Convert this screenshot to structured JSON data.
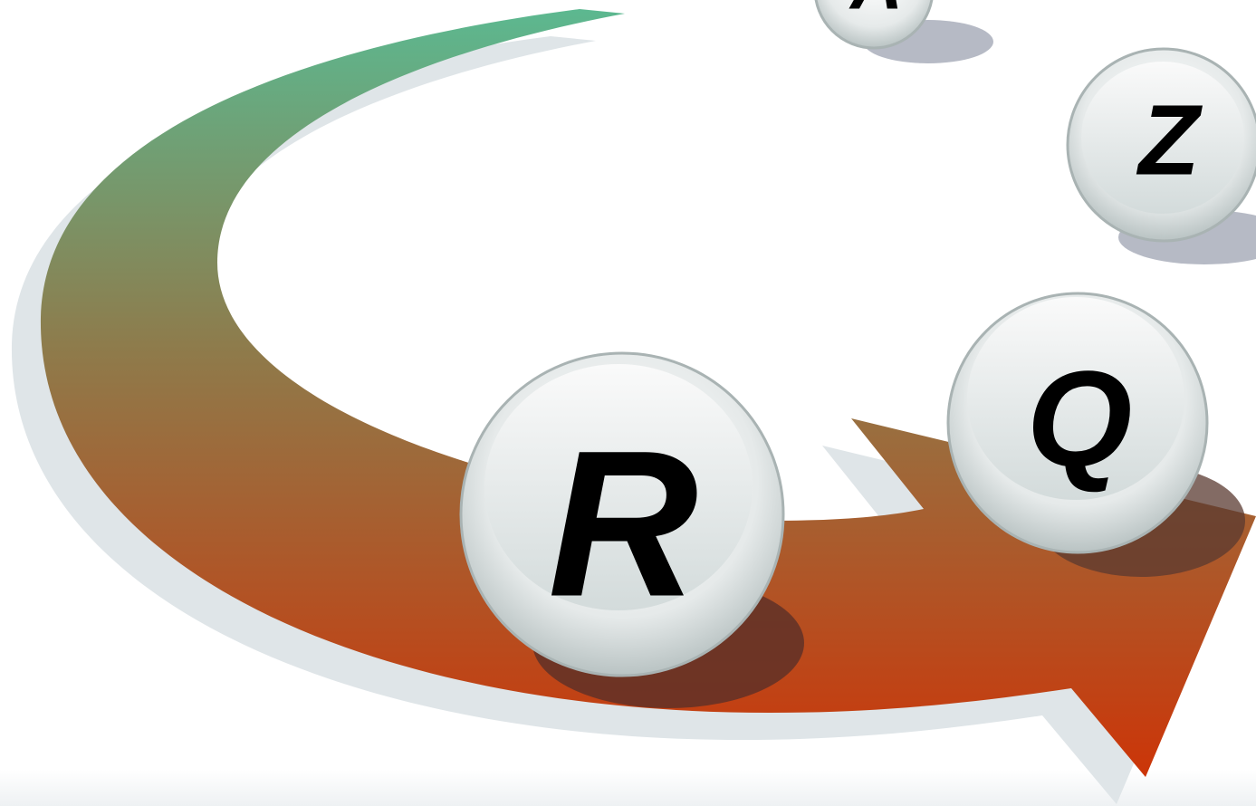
{
  "balls": [
    {
      "label": "R"
    },
    {
      "label": "Q"
    },
    {
      "label": "Z"
    },
    {
      "label": "A"
    }
  ]
}
